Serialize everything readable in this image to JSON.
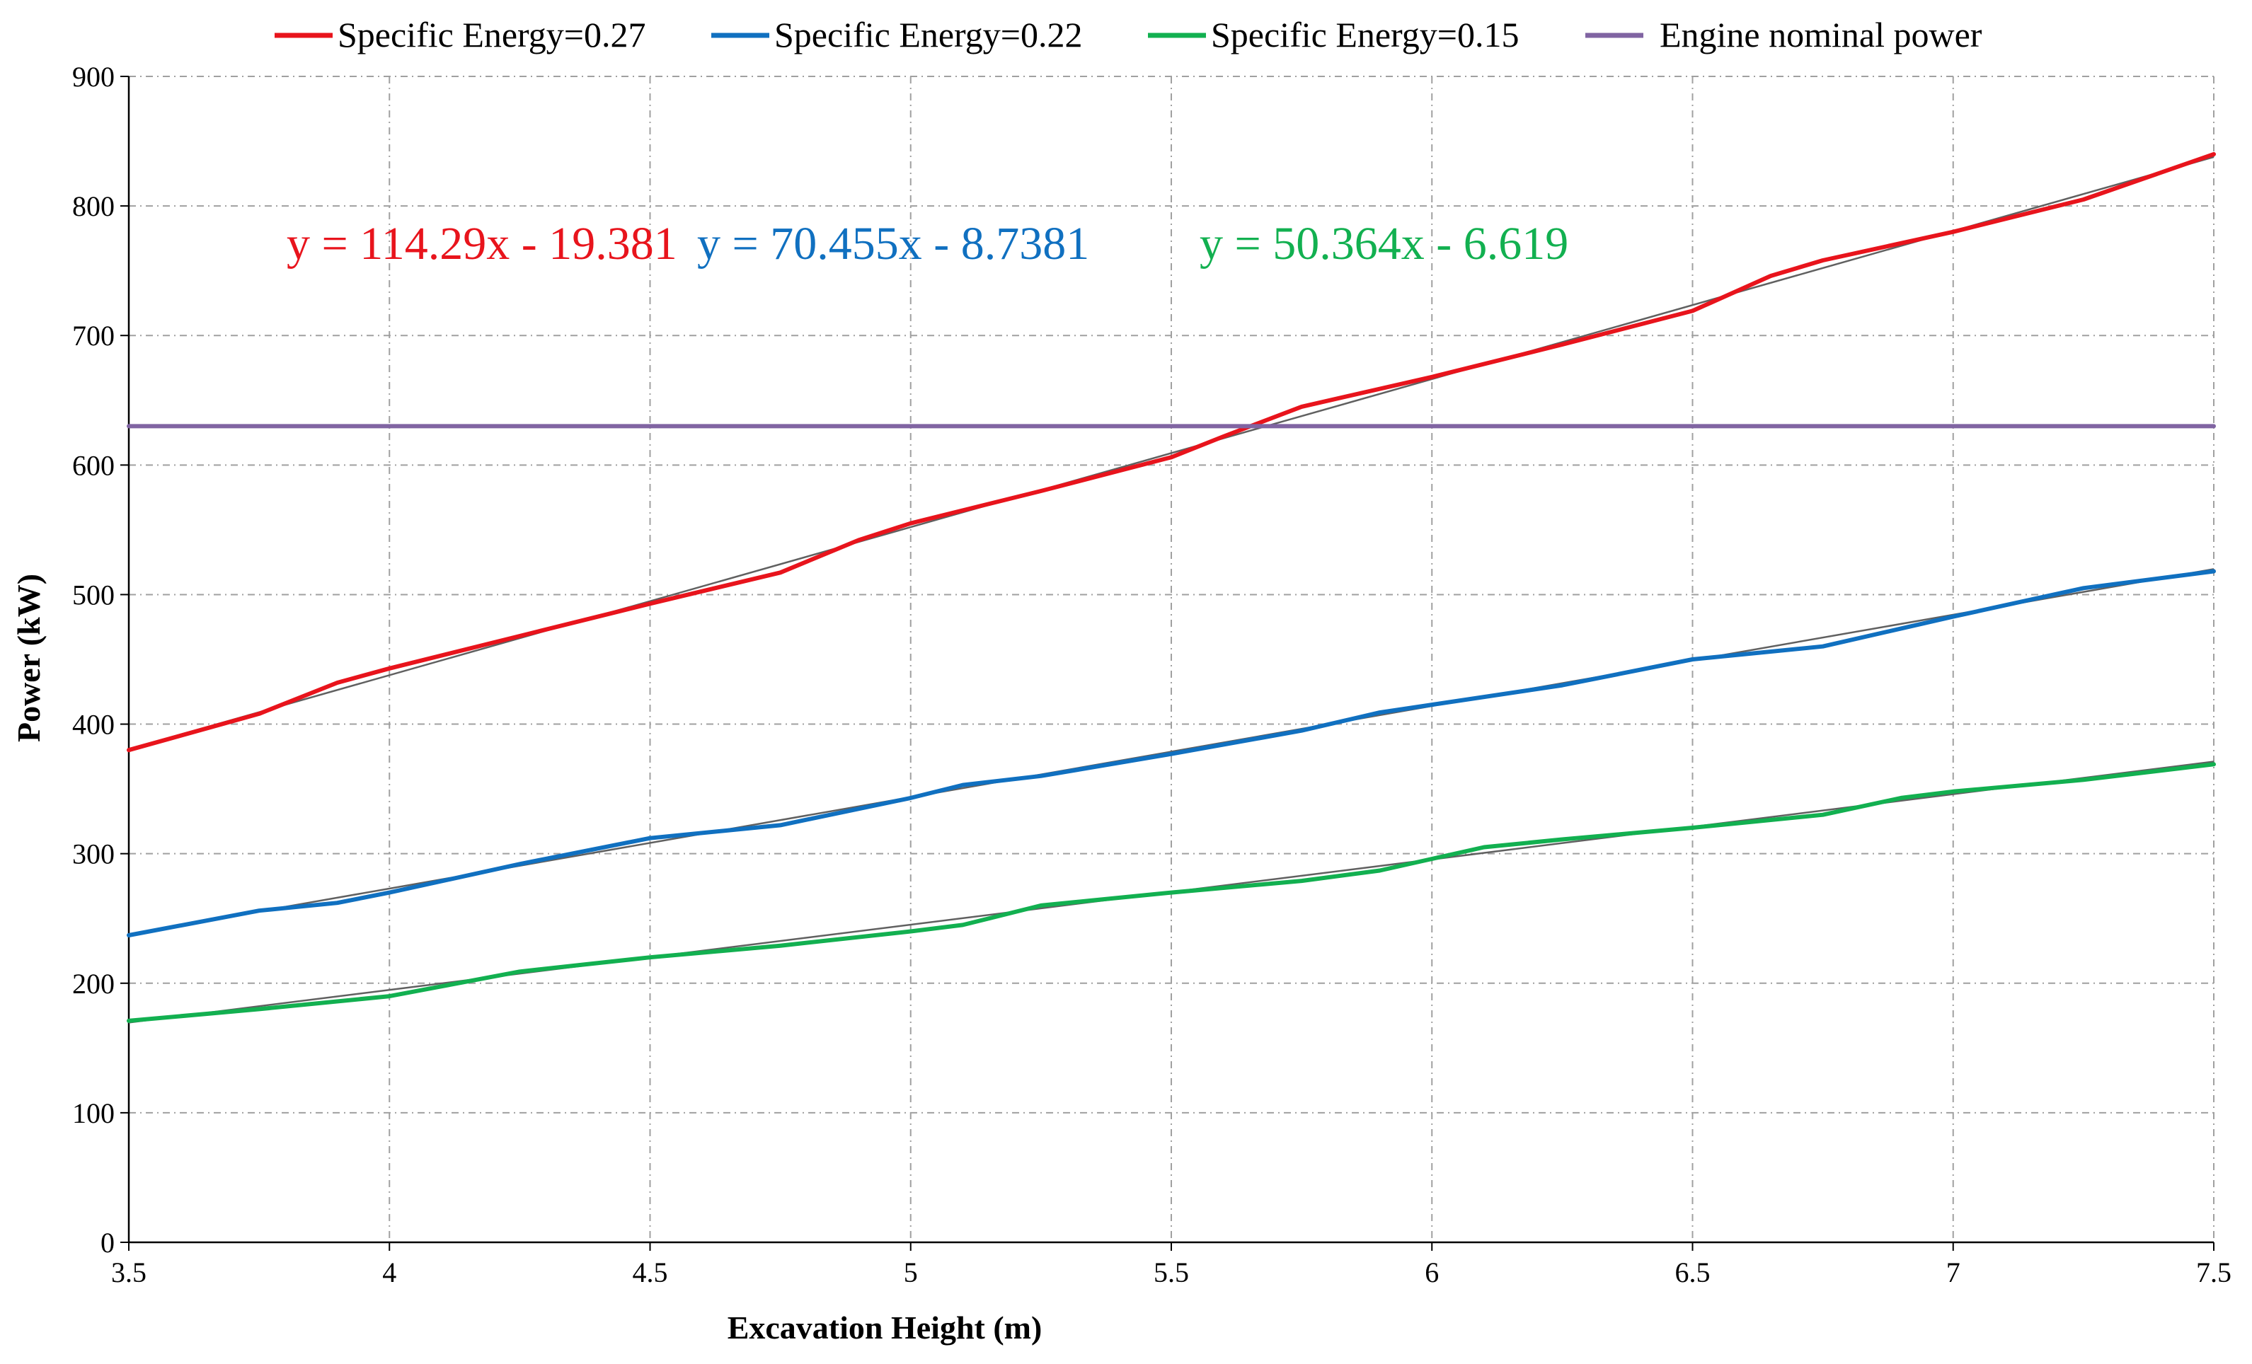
{
  "chart_data": {
    "type": "line",
    "title": "",
    "xlabel": "Excavation Height (m)",
    "ylabel": "Power (kW)",
    "xlim": [
      3.5,
      7.5
    ],
    "ylim": [
      0,
      900
    ],
    "x_ticks": [
      "3.5",
      "4",
      "4.5",
      "5",
      "5.5",
      "6",
      "6.5",
      "7",
      "7.5"
    ],
    "y_ticks": [
      "0",
      "100",
      "200",
      "300",
      "400",
      "500",
      "600",
      "700",
      "800",
      "900"
    ],
    "grid": true,
    "legend_position": "top",
    "series": [
      {
        "name": "Specific Energy=0.27",
        "color": "#e8141c",
        "x": [
          3.5,
          3.75,
          3.9,
          4.0,
          4.25,
          4.5,
          4.75,
          4.9,
          5.0,
          5.25,
          5.5,
          5.6,
          5.75,
          6.0,
          6.25,
          6.5,
          6.65,
          6.75,
          7.0,
          7.25,
          7.5
        ],
        "y": [
          380,
          408,
          432,
          443,
          468,
          493,
          517,
          542,
          555,
          580,
          606,
          622,
          645,
          668,
          693,
          719,
          746,
          758,
          780,
          805,
          840
        ],
        "trendline": {
          "slope": 114.29,
          "intercept": -19.381
        },
        "equation": "y = 114.29x - 19.381"
      },
      {
        "name": "Specific Energy=0.22",
        "color": "#1070c0",
        "x": [
          3.5,
          3.75,
          3.9,
          4.0,
          4.25,
          4.5,
          4.75,
          5.0,
          5.1,
          5.25,
          5.5,
          5.75,
          5.9,
          6.0,
          6.25,
          6.5,
          6.75,
          7.0,
          7.25,
          7.5
        ],
        "y": [
          237,
          256,
          262,
          270,
          292,
          312,
          322,
          343,
          353,
          360,
          377,
          395,
          409,
          415,
          430,
          450,
          460,
          483,
          505,
          518
        ],
        "trendline": {
          "slope": 70.455,
          "intercept": -8.7381
        },
        "equation": "y = 70.455x - 8.7381"
      },
      {
        "name": "Specific Energy=0.15",
        "color": "#12b050",
        "x": [
          3.5,
          3.75,
          4.0,
          4.25,
          4.5,
          4.75,
          5.0,
          5.1,
          5.25,
          5.5,
          5.75,
          5.9,
          6.0,
          6.1,
          6.25,
          6.5,
          6.75,
          6.9,
          7.0,
          7.25,
          7.5
        ],
        "y": [
          171,
          180,
          190,
          209,
          220,
          229,
          240,
          245,
          260,
          270,
          279,
          287,
          296,
          305,
          311,
          320,
          330,
          343,
          348,
          357,
          369
        ],
        "trendline": {
          "slope": 50.364,
          "intercept": -6.619
        },
        "equation": "y = 50.364x - 6.619"
      },
      {
        "name": "Engine nominal power",
        "color": "#8064a2",
        "x": [
          3.5,
          7.5
        ],
        "y": [
          630,
          630
        ]
      }
    ],
    "trendline_color": "#606060"
  }
}
